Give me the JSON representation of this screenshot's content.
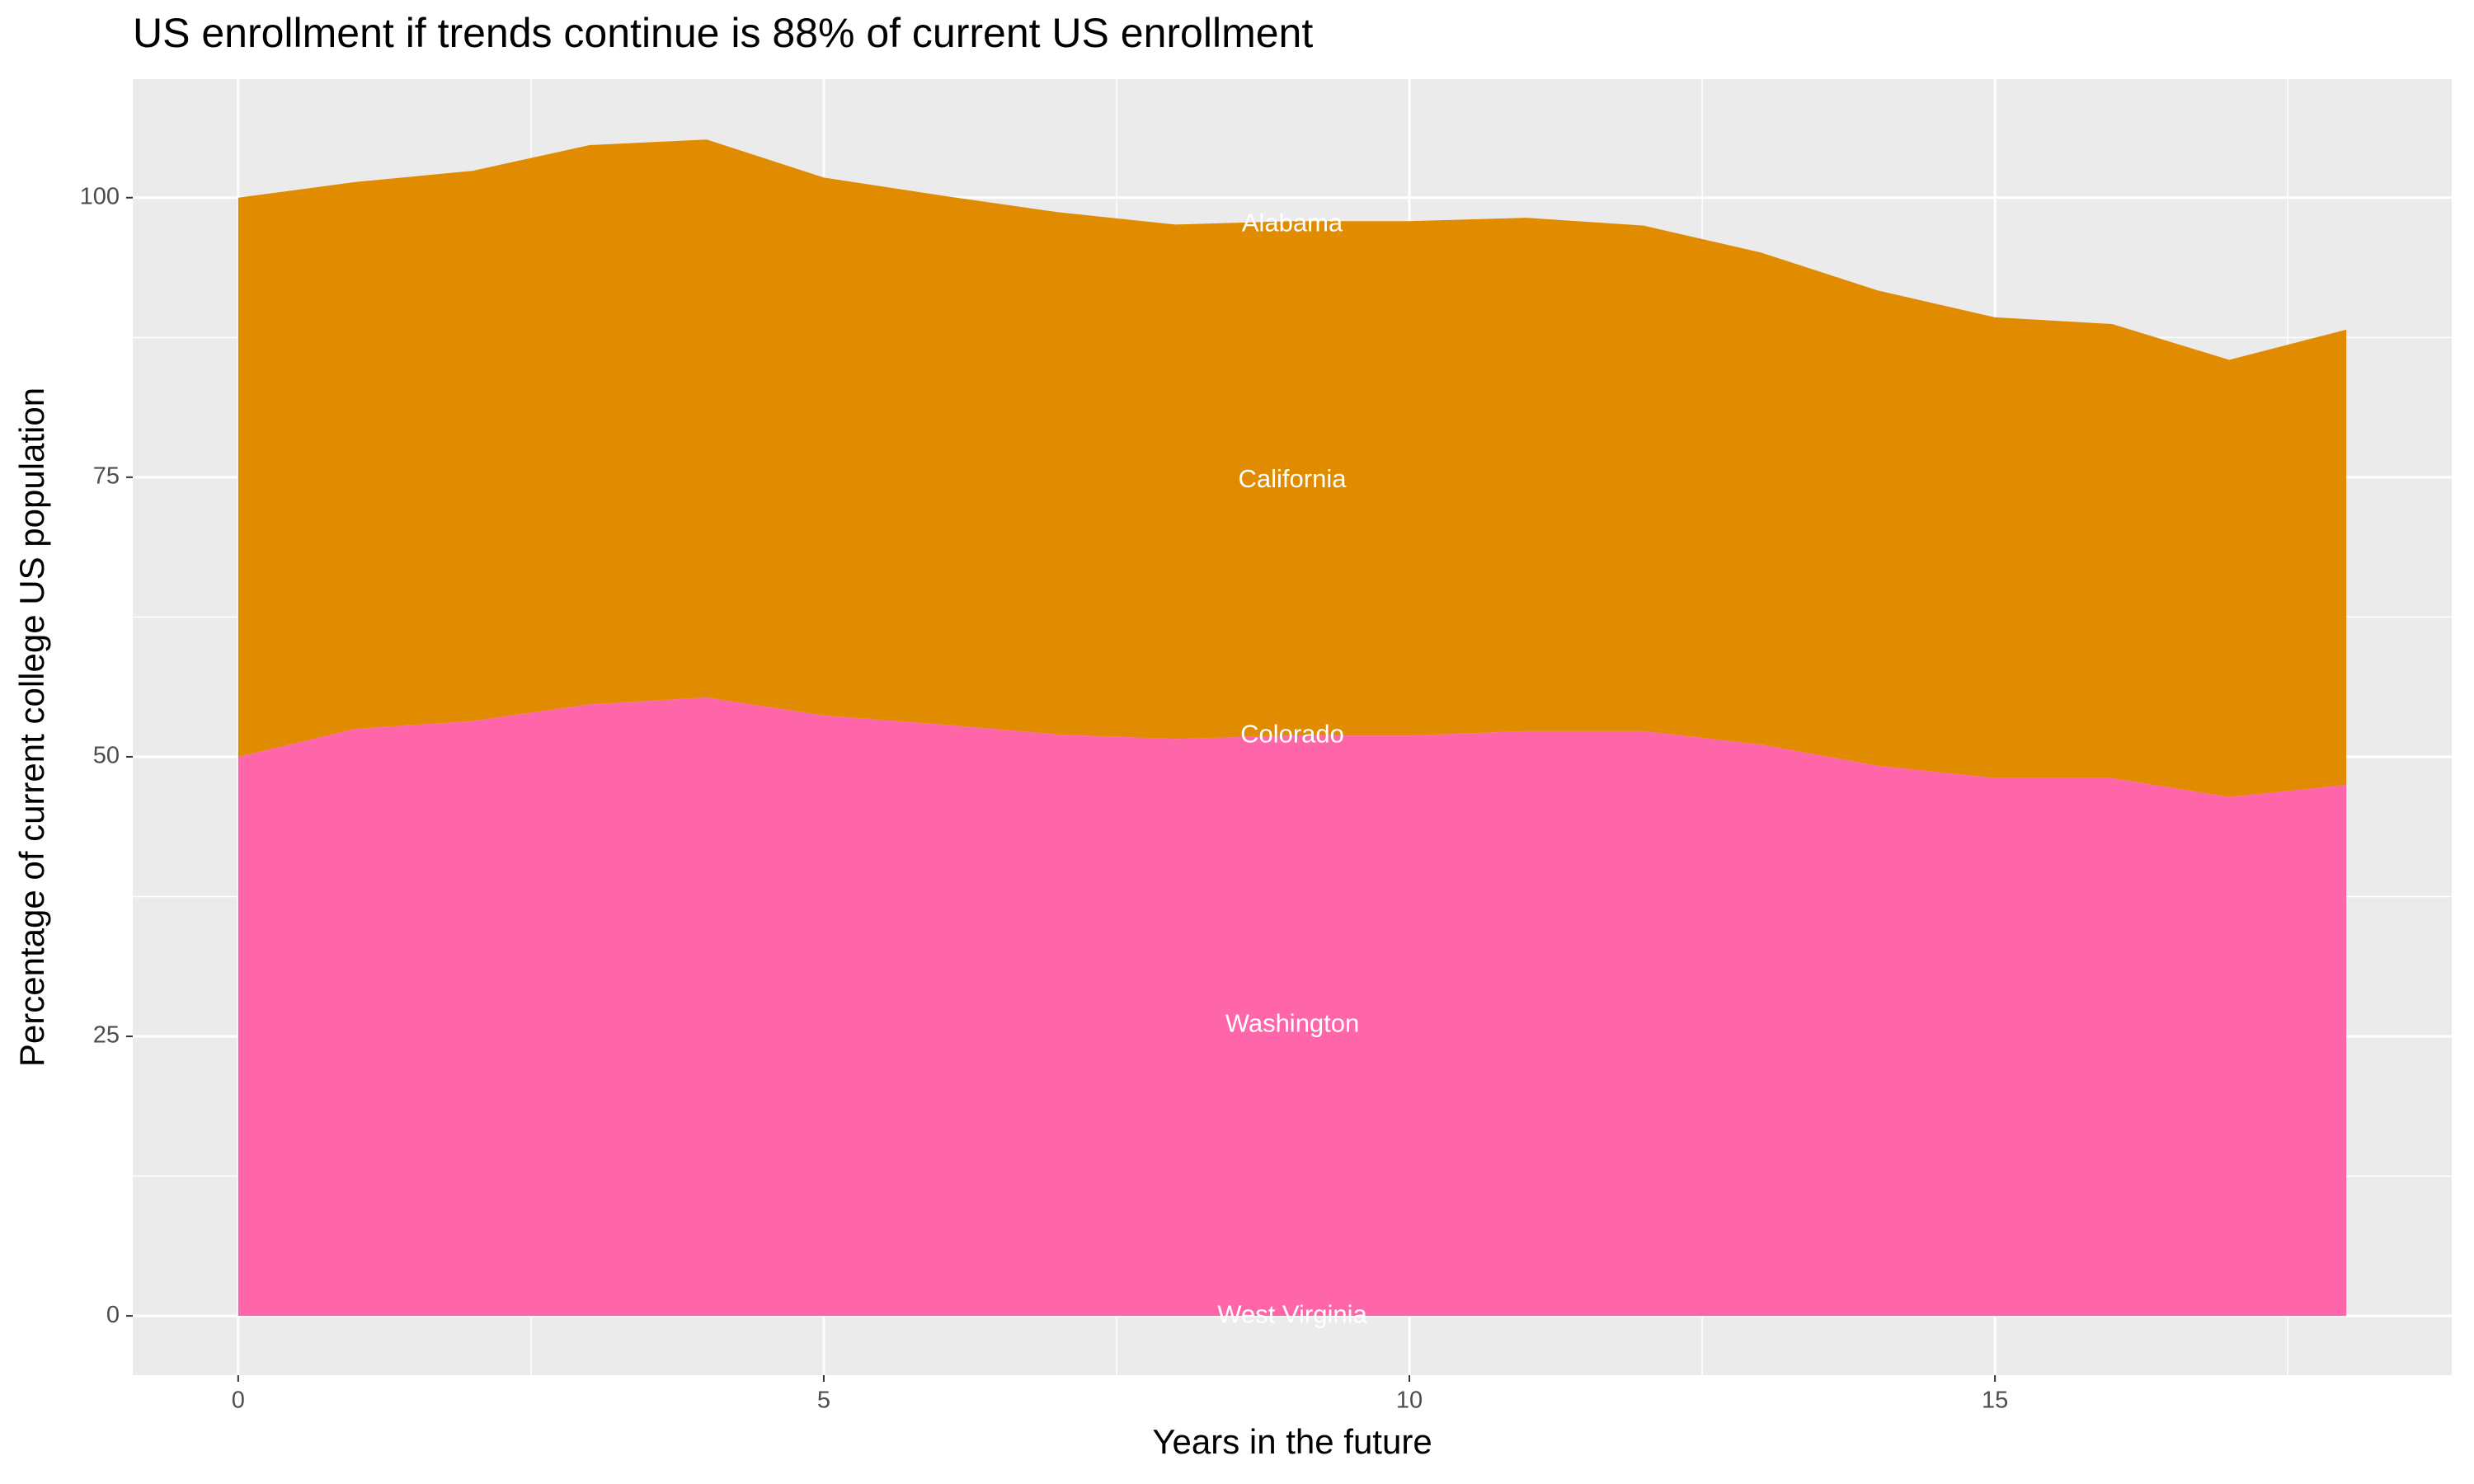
{
  "chart_data": {
    "type": "stacked-area",
    "title": "US enrollment if trends continue is 88% of current US enrollment",
    "x_label": "Years in the future",
    "y_label": "Percentage of current college US population",
    "x": [
      0,
      1,
      2,
      3,
      4,
      5,
      6,
      7,
      8,
      9,
      10,
      11,
      12,
      13,
      14,
      15,
      16,
      17,
      18
    ],
    "series": [
      {
        "name": "Washington",
        "color": "#ff66aa",
        "values": [
          50,
          52.5,
          53.2,
          54.7,
          55.3,
          53.7,
          52.9,
          52.0,
          51.6,
          51.9,
          51.9,
          52.3,
          52.3,
          51.1,
          49.2,
          48.1,
          48.1,
          46.4,
          47.5
        ]
      },
      {
        "name": "California",
        "color": "#e08b00",
        "values": [
          50,
          48.9,
          49.2,
          50.0,
          49.9,
          48.1,
          47.3,
          46.7,
          46.0,
          46.0,
          46.0,
          45.9,
          45.2,
          44.0,
          42.5,
          41.2,
          40.6,
          39.1,
          40.7
        ]
      }
    ],
    "annotations": [
      {
        "text": "Alabama",
        "x": 9,
        "y": 97.6
      },
      {
        "text": "California",
        "x": 9,
        "y": 74.7
      },
      {
        "text": "Colorado",
        "x": 9,
        "y": 51.9
      },
      {
        "text": "Washington",
        "x": 9,
        "y": 26
      },
      {
        "text": "West Virginia",
        "x": 9,
        "y": 0
      }
    ],
    "xlim": [
      -0.9,
      18.9
    ],
    "ylim": [
      -5.3,
      110.6
    ],
    "xticks": [
      0,
      5,
      10,
      15
    ],
    "yticks": [
      0,
      25,
      50,
      75,
      100
    ],
    "grid": true
  }
}
